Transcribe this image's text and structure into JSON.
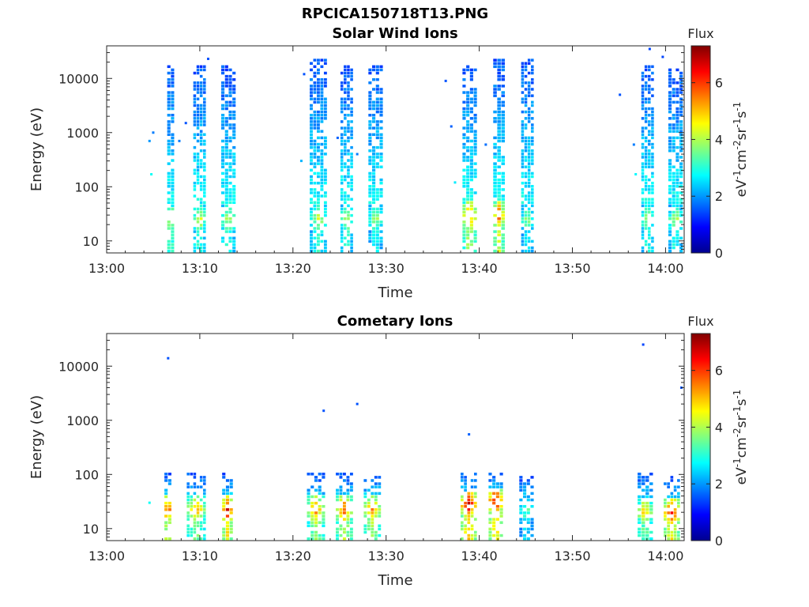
{
  "figure": {
    "title": "RPCICA150718T13.PNG"
  },
  "colorbar": {
    "label": "Flux",
    "ticks": [
      "0",
      "2",
      "4",
      "6"
    ],
    "range": [
      0,
      7.3
    ],
    "unit_parts": [
      "eV",
      "-1",
      "cm",
      "-2",
      "sr",
      "-1",
      "s",
      "-1"
    ]
  },
  "chart_data": [
    {
      "type": "heatmap",
      "title": "Solar Wind Ions",
      "xlabel": "Time",
      "ylabel": "Energy (eV)",
      "x_ticks": [
        "13:00",
        "13:10",
        "13:20",
        "13:30",
        "13:40",
        "13:50",
        "14:00"
      ],
      "x_range_minutes": [
        0,
        62
      ],
      "y_ticks": [
        "10",
        "100",
        "1000",
        "10000"
      ],
      "y_scale": "log",
      "y_range": [
        6,
        40000
      ],
      "colormap": "jet",
      "color_range": [
        0,
        7.3
      ],
      "bursts": [
        {
          "t_min": 6.5,
          "t_max": 7.3,
          "e_top": 18000,
          "peak_flux": 5.0,
          "low_e_peak": 25
        },
        {
          "t_min": 9.3,
          "t_max": 10.7,
          "e_top": 16000,
          "peak_flux": 4.6,
          "low_e_peak": 25
        },
        {
          "t_min": 12.3,
          "t_max": 13.9,
          "e_top": 15000,
          "peak_flux": 4.4,
          "low_e_peak": 25
        },
        {
          "t_min": 21.8,
          "t_max": 23.7,
          "e_top": 20000,
          "peak_flux": 4.3,
          "low_e_peak": 25
        },
        {
          "t_min": 25.1,
          "t_max": 26.5,
          "e_top": 16000,
          "peak_flux": 4.4,
          "low_e_peak": 25
        },
        {
          "t_min": 28.1,
          "t_max": 29.7,
          "e_top": 16000,
          "peak_flux": 4.1,
          "low_e_peak": 25
        },
        {
          "t_min": 38.2,
          "t_max": 39.8,
          "e_top": 16000,
          "peak_flux": 5.8,
          "low_e_peak": 30
        },
        {
          "t_min": 41.5,
          "t_max": 42.8,
          "e_top": 22000,
          "peak_flux": 5.9,
          "low_e_peak": 30
        },
        {
          "t_min": 44.5,
          "t_max": 45.9,
          "e_top": 20000,
          "peak_flux": 4.0,
          "low_e_peak": 25
        },
        {
          "t_min": 57.4,
          "t_max": 58.8,
          "e_top": 16000,
          "peak_flux": 4.3,
          "low_e_peak": 25
        },
        {
          "t_min": 60.3,
          "t_max": 61.9,
          "e_top": 14000,
          "peak_flux": 4.3,
          "low_e_peak": 25
        }
      ],
      "isolated_points": [
        {
          "t": 4.6,
          "e": 700,
          "flux": 2.0
        },
        {
          "t": 4.8,
          "e": 170,
          "flux": 2.8
        },
        {
          "t": 5.0,
          "e": 1000,
          "flux": 1.8
        },
        {
          "t": 7.8,
          "e": 700,
          "flux": 1.8
        },
        {
          "t": 8.5,
          "e": 1500,
          "flux": 1.5
        },
        {
          "t": 10.9,
          "e": 23000,
          "flux": 1.5
        },
        {
          "t": 20.9,
          "e": 300,
          "flux": 2.2
        },
        {
          "t": 21.2,
          "e": 12000,
          "flux": 1.5
        },
        {
          "t": 24.8,
          "e": 800,
          "flux": 1.6
        },
        {
          "t": 26.9,
          "e": 400,
          "flux": 1.8
        },
        {
          "t": 36.4,
          "e": 9000,
          "flux": 1.5
        },
        {
          "t": 37.0,
          "e": 1300,
          "flux": 1.6
        },
        {
          "t": 37.4,
          "e": 120,
          "flux": 2.6
        },
        {
          "t": 40.7,
          "e": 600,
          "flux": 1.7
        },
        {
          "t": 55.1,
          "e": 5000,
          "flux": 1.5
        },
        {
          "t": 56.6,
          "e": 600,
          "flux": 1.8
        },
        {
          "t": 56.8,
          "e": 170,
          "flux": 2.7
        },
        {
          "t": 58.3,
          "e": 35000,
          "flux": 1.4
        },
        {
          "t": 59.7,
          "e": 25000,
          "flux": 1.4
        }
      ]
    },
    {
      "type": "heatmap",
      "title": "Cometary Ions",
      "xlabel": "Time",
      "ylabel": "Energy (eV)",
      "x_ticks": [
        "13:00",
        "13:10",
        "13:20",
        "13:30",
        "13:40",
        "13:50",
        "14:00"
      ],
      "x_range_minutes": [
        0,
        62
      ],
      "y_ticks": [
        "10",
        "100",
        "1000",
        "10000"
      ],
      "y_scale": "log",
      "y_range": [
        6,
        40000
      ],
      "colormap": "jet",
      "color_range": [
        0,
        7.3
      ],
      "bursts": [
        {
          "t_min": 6.2,
          "t_max": 7.0,
          "e_top": 100,
          "peak_flux": 6.5,
          "low_e_peak": 22
        },
        {
          "t_min": 8.6,
          "t_max": 10.7,
          "e_top": 100,
          "peak_flux": 5.4,
          "low_e_peak": 22
        },
        {
          "t_min": 12.4,
          "t_max": 13.6,
          "e_top": 100,
          "peak_flux": 6.6,
          "low_e_peak": 22
        },
        {
          "t_min": 21.5,
          "t_max": 23.5,
          "e_top": 100,
          "peak_flux": 5.6,
          "low_e_peak": 22
        },
        {
          "t_min": 24.6,
          "t_max": 26.5,
          "e_top": 100,
          "peak_flux": 5.9,
          "low_e_peak": 22
        },
        {
          "t_min": 27.6,
          "t_max": 29.5,
          "e_top": 100,
          "peak_flux": 5.6,
          "low_e_peak": 22
        },
        {
          "t_min": 38.0,
          "t_max": 39.8,
          "e_top": 100,
          "peak_flux": 6.9,
          "low_e_peak": 28
        },
        {
          "t_min": 41.0,
          "t_max": 42.6,
          "e_top": 100,
          "peak_flux": 6.9,
          "low_e_peak": 32
        },
        {
          "t_min": 44.3,
          "t_max": 45.9,
          "e_top": 80,
          "peak_flux": 3.6,
          "low_e_peak": 22
        },
        {
          "t_min": 57.0,
          "t_max": 58.7,
          "e_top": 100,
          "peak_flux": 5.2,
          "low_e_peak": 20
        },
        {
          "t_min": 59.8,
          "t_max": 61.6,
          "e_top": 80,
          "peak_flux": 6.5,
          "low_e_peak": 20
        }
      ],
      "isolated_points": [
        {
          "t": 6.6,
          "e": 14000,
          "flux": 1.5
        },
        {
          "t": 23.3,
          "e": 1500,
          "flux": 1.5
        },
        {
          "t": 26.9,
          "e": 2000,
          "flux": 1.5
        },
        {
          "t": 38.9,
          "e": 550,
          "flux": 1.6
        },
        {
          "t": 57.6,
          "e": 25000,
          "flux": 1.4
        },
        {
          "t": 61.7,
          "e": 4000,
          "flux": 1.5
        },
        {
          "t": 4.6,
          "e": 30,
          "flux": 2.8
        }
      ]
    }
  ]
}
